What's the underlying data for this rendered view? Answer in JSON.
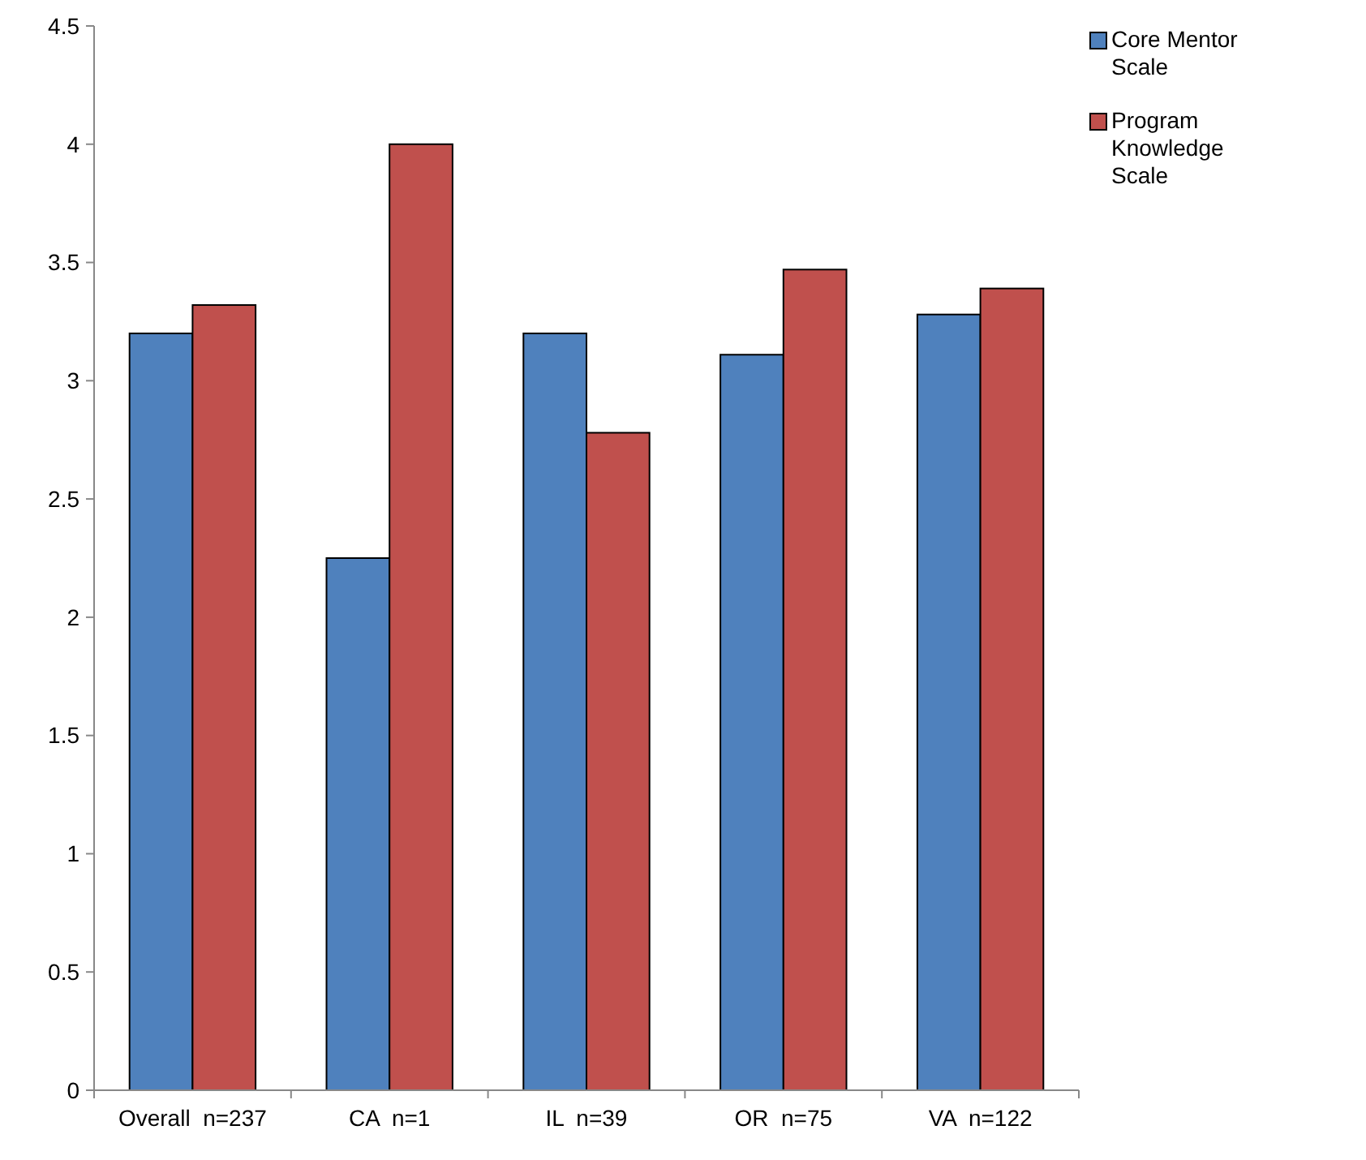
{
  "chart_data": {
    "type": "bar",
    "categories": [
      "Overall  n=237",
      "CA  n=1",
      "IL  n=39",
      "OR  n=75",
      "VA  n=122"
    ],
    "series": [
      {
        "name": "Core Mentor Scale",
        "color": "#4f81bd",
        "values": [
          3.2,
          2.25,
          3.2,
          3.11,
          3.28
        ]
      },
      {
        "name": "Program Knowledge Scale",
        "color": "#c0504d",
        "values": [
          3.32,
          4.0,
          2.78,
          3.47,
          3.39
        ]
      }
    ],
    "ylim": [
      0,
      4.5
    ],
    "yticks": [
      0,
      0.5,
      1,
      1.5,
      2,
      2.5,
      3,
      3.5,
      4,
      4.5
    ],
    "grid": false,
    "legend": "top right"
  }
}
